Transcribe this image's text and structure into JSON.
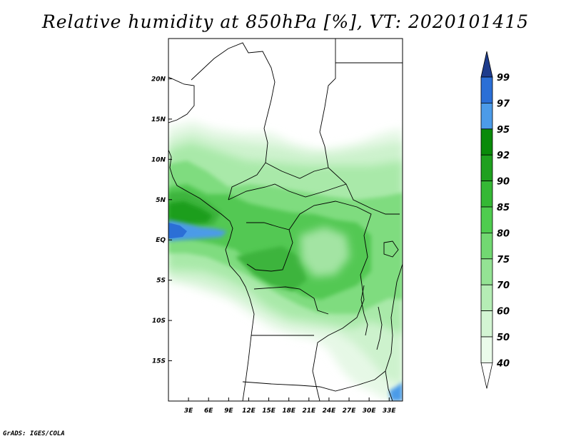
{
  "title": "Relative humidity at 850hPa [%], VT: 2020101415",
  "credit": "GrADS: IGES/COLA",
  "map": {
    "lon_range": [
      0,
      35
    ],
    "lat_range": [
      -20,
      25
    ],
    "lon_ticks": [
      "3E",
      "6E",
      "9E",
      "12E",
      "15E",
      "18E",
      "21E",
      "24E",
      "27E",
      "30E",
      "33E"
    ],
    "lat_ticks": [
      "20N",
      "15N",
      "10N",
      "5N",
      "EQ",
      "5S",
      "10S",
      "15S"
    ]
  },
  "colorbar": {
    "labels": [
      "99",
      "97",
      "95",
      "92",
      "90",
      "85",
      "80",
      "75",
      "70",
      "60",
      "50",
      "40"
    ],
    "colors": [
      "#1e3c8c",
      "#2b6fd6",
      "#4c9be8",
      "#0a8a0a",
      "#1fa01f",
      "#35b835",
      "#4fcc4f",
      "#72d872",
      "#94e394",
      "#b5edb5",
      "#d3f5d3",
      "#eafbea"
    ]
  }
}
